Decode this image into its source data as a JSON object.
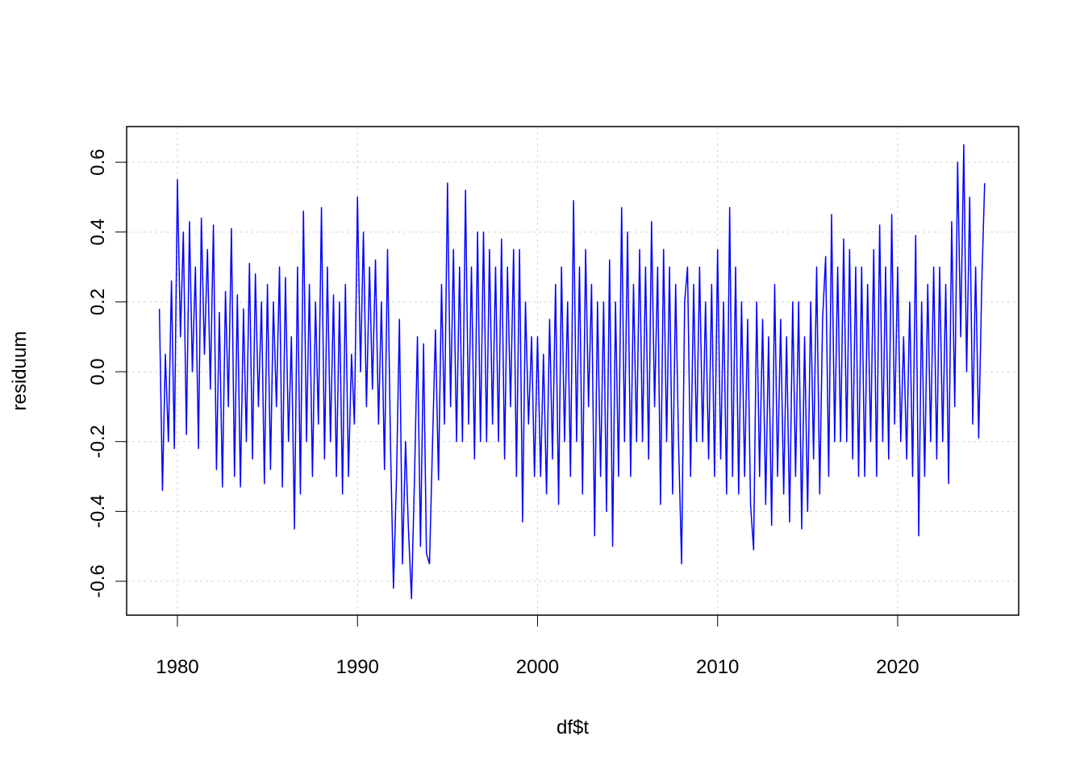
{
  "chart_data": {
    "type": "line",
    "x_label": "df$t",
    "y_label": "residuum",
    "xlim": [
      1977.18,
      2026.72
    ],
    "ylim": [
      -0.697,
      0.702
    ],
    "xticks": [
      1980,
      1990,
      2000,
      2010,
      2020
    ],
    "yticks": [
      -0.6,
      -0.4,
      -0.2,
      {
        "value": 0,
        "label": "0.0"
      },
      0.2,
      0.4,
      0.6
    ],
    "grid": true,
    "series": [
      {
        "color": "#0000ff",
        "x": [
          1979.0,
          1979.17,
          1979.33,
          1979.5,
          1979.67,
          1979.83,
          1980.0,
          1980.17,
          1980.33,
          1980.5,
          1980.67,
          1980.83,
          1981.0,
          1981.17,
          1981.33,
          1981.5,
          1981.67,
          1981.83,
          1982.0,
          1982.17,
          1982.33,
          1982.5,
          1982.67,
          1982.83,
          1983.0,
          1983.17,
          1983.33,
          1983.5,
          1983.67,
          1983.83,
          1984.0,
          1984.17,
          1984.33,
          1984.5,
          1984.67,
          1984.83,
          1985.0,
          1985.17,
          1985.33,
          1985.5,
          1985.67,
          1985.83,
          1986.0,
          1986.17,
          1986.33,
          1986.5,
          1986.67,
          1986.83,
          1987.0,
          1987.17,
          1987.33,
          1987.5,
          1987.67,
          1987.83,
          1988.0,
          1988.17,
          1988.33,
          1988.5,
          1988.67,
          1988.83,
          1989.0,
          1989.17,
          1989.33,
          1989.5,
          1989.67,
          1989.83,
          1990.0,
          1990.17,
          1990.33,
          1990.5,
          1990.67,
          1990.83,
          1991.0,
          1991.17,
          1991.33,
          1991.5,
          1991.67,
          1991.83,
          1992.0,
          1992.17,
          1992.33,
          1992.5,
          1992.67,
          1992.83,
          1993.0,
          1993.17,
          1993.33,
          1993.5,
          1993.67,
          1993.83,
          1994.0,
          1994.17,
          1994.33,
          1994.5,
          1994.67,
          1994.83,
          1995.0,
          1995.17,
          1995.33,
          1995.5,
          1995.67,
          1995.83,
          1996.0,
          1996.17,
          1996.33,
          1996.5,
          1996.67,
          1996.83,
          1997.0,
          1997.17,
          1997.33,
          1997.5,
          1997.67,
          1997.83,
          1998.0,
          1998.17,
          1998.33,
          1998.5,
          1998.67,
          1998.83,
          1999.0,
          1999.17,
          1999.33,
          1999.5,
          1999.67,
          1999.83,
          2000.0,
          2000.17,
          2000.33,
          2000.5,
          2000.67,
          2000.83,
          2001.0,
          2001.17,
          2001.33,
          2001.5,
          2001.67,
          2001.83,
          2002.0,
          2002.17,
          2002.33,
          2002.5,
          2002.67,
          2002.83,
          2003.0,
          2003.17,
          2003.33,
          2003.5,
          2003.67,
          2003.83,
          2004.0,
          2004.17,
          2004.33,
          2004.5,
          2004.67,
          2004.83,
          2005.0,
          2005.17,
          2005.33,
          2005.5,
          2005.67,
          2005.83,
          2006.0,
          2006.17,
          2006.33,
          2006.5,
          2006.67,
          2006.83,
          2007.0,
          2007.17,
          2007.33,
          2007.5,
          2007.67,
          2007.83,
          2008.0,
          2008.17,
          2008.33,
          2008.5,
          2008.67,
          2008.83,
          2009.0,
          2009.17,
          2009.33,
          2009.5,
          2009.67,
          2009.83,
          2010.0,
          2010.17,
          2010.33,
          2010.5,
          2010.67,
          2010.83,
          2011.0,
          2011.17,
          2011.33,
          2011.5,
          2011.67,
          2011.83,
          2012.0,
          2012.17,
          2012.33,
          2012.5,
          2012.67,
          2012.83,
          2013.0,
          2013.17,
          2013.33,
          2013.5,
          2013.67,
          2013.83,
          2014.0,
          2014.17,
          2014.33,
          2014.5,
          2014.67,
          2014.83,
          2015.0,
          2015.17,
          2015.33,
          2015.5,
          2015.67,
          2015.83,
          2016.0,
          2016.17,
          2016.33,
          2016.5,
          2016.67,
          2016.83,
          2017.0,
          2017.17,
          2017.33,
          2017.5,
          2017.67,
          2017.83,
          2018.0,
          2018.17,
          2018.33,
          2018.5,
          2018.67,
          2018.83,
          2019.0,
          2019.17,
          2019.33,
          2019.5,
          2019.67,
          2019.83,
          2020.0,
          2020.17,
          2020.33,
          2020.5,
          2020.67,
          2020.83,
          2021.0,
          2021.17,
          2021.33,
          2021.5,
          2021.67,
          2021.83,
          2022.0,
          2022.17,
          2022.33,
          2022.5,
          2022.67,
          2022.83,
          2023.0,
          2023.17,
          2023.33,
          2023.5,
          2023.67,
          2023.83,
          2024.0,
          2024.17,
          2024.33,
          2024.5,
          2024.67,
          2024.83
        ],
        "values": [
          0.18,
          -0.34,
          0.05,
          -0.2,
          0.26,
          -0.22,
          0.55,
          0.1,
          0.4,
          -0.18,
          0.43,
          0.0,
          0.3,
          -0.22,
          0.44,
          0.05,
          0.35,
          -0.05,
          0.42,
          -0.28,
          0.17,
          -0.33,
          0.23,
          -0.1,
          0.41,
          -0.3,
          0.22,
          -0.33,
          0.18,
          -0.2,
          0.31,
          -0.25,
          0.28,
          -0.1,
          0.2,
          -0.32,
          0.25,
          -0.28,
          0.2,
          -0.1,
          0.3,
          -0.33,
          0.27,
          -0.2,
          0.1,
          -0.45,
          0.3,
          -0.35,
          0.46,
          -0.2,
          0.25,
          -0.3,
          0.2,
          -0.15,
          0.47,
          -0.25,
          0.3,
          -0.2,
          0.22,
          -0.3,
          0.2,
          -0.35,
          0.25,
          -0.3,
          0.05,
          -0.15,
          0.5,
          0.0,
          0.4,
          -0.1,
          0.3,
          -0.05,
          0.32,
          -0.15,
          0.2,
          -0.28,
          0.35,
          -0.2,
          -0.62,
          -0.3,
          0.15,
          -0.55,
          -0.2,
          -0.45,
          -0.65,
          -0.3,
          0.1,
          -0.5,
          0.08,
          -0.52,
          -0.55,
          -0.2,
          0.12,
          -0.31,
          0.25,
          -0.15,
          0.54,
          -0.1,
          0.35,
          -0.2,
          0.3,
          -0.2,
          0.52,
          -0.15,
          0.3,
          -0.25,
          0.4,
          -0.2,
          0.4,
          -0.2,
          0.35,
          -0.15,
          0.3,
          -0.2,
          0.38,
          -0.25,
          0.3,
          -0.1,
          0.35,
          -0.3,
          0.35,
          -0.43,
          0.2,
          -0.15,
          0.1,
          -0.3,
          0.1,
          -0.3,
          0.05,
          -0.35,
          0.15,
          -0.25,
          0.25,
          -0.38,
          0.3,
          -0.2,
          0.2,
          -0.3,
          0.49,
          -0.2,
          0.3,
          -0.35,
          0.35,
          -0.1,
          0.25,
          -0.47,
          0.2,
          -0.3,
          0.2,
          -0.4,
          0.32,
          -0.5,
          0.2,
          -0.3,
          0.47,
          -0.2,
          0.4,
          -0.3,
          0.25,
          -0.2,
          0.35,
          -0.2,
          0.3,
          -0.25,
          0.43,
          -0.1,
          0.3,
          -0.38,
          0.35,
          -0.2,
          0.3,
          -0.35,
          0.25,
          -0.2,
          -0.55,
          0.2,
          0.3,
          -0.3,
          0.25,
          -0.2,
          0.3,
          -0.2,
          0.2,
          -0.25,
          0.25,
          -0.3,
          0.35,
          -0.25,
          0.2,
          -0.35,
          0.47,
          -0.3,
          0.3,
          -0.35,
          0.2,
          -0.3,
          0.15,
          -0.38,
          -0.51,
          0.2,
          -0.3,
          0.15,
          -0.38,
          0.1,
          -0.44,
          0.25,
          -0.3,
          0.15,
          -0.35,
          0.1,
          -0.43,
          0.2,
          -0.3,
          0.2,
          -0.45,
          0.1,
          -0.4,
          0.2,
          -0.25,
          0.3,
          -0.35,
          0.15,
          0.33,
          -0.3,
          0.45,
          -0.2,
          0.3,
          -0.2,
          0.38,
          -0.2,
          0.35,
          -0.25,
          0.3,
          -0.3,
          0.3,
          -0.3,
          0.25,
          -0.2,
          0.35,
          -0.3,
          0.42,
          -0.2,
          0.3,
          -0.25,
          0.45,
          -0.15,
          0.3,
          -0.2,
          0.1,
          -0.25,
          0.2,
          -0.3,
          0.39,
          -0.47,
          0.2,
          -0.3,
          0.25,
          -0.2,
          0.3,
          -0.25,
          0.3,
          -0.2,
          0.25,
          -0.32,
          0.43,
          -0.1,
          0.6,
          0.1,
          0.65,
          0.0,
          0.5,
          -0.15,
          0.3,
          -0.19,
          0.25,
          0.54
        ]
      }
    ]
  }
}
